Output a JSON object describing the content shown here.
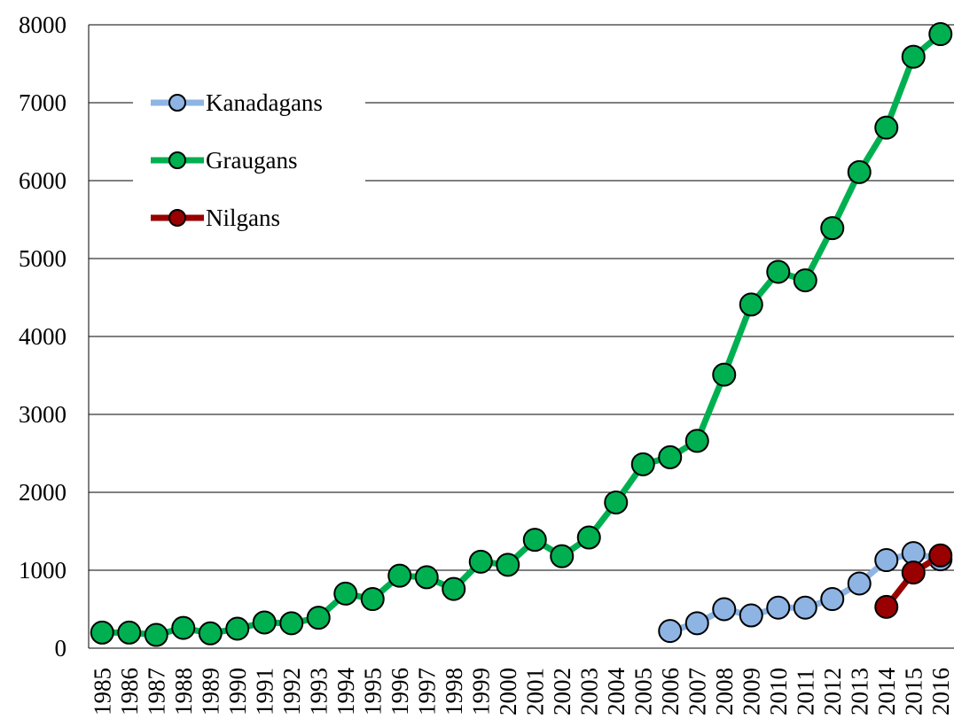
{
  "chart_data": {
    "type": "line",
    "categories": [
      "1985",
      "1986",
      "1987",
      "1988",
      "1989",
      "1990",
      "1991",
      "1992",
      "1993",
      "1994",
      "1995",
      "1996",
      "1997",
      "1998",
      "1999",
      "2000",
      "2001",
      "2002",
      "2003",
      "2004",
      "2005",
      "2006",
      "2007",
      "2008",
      "2009",
      "2010",
      "2011",
      "2012",
      "2013",
      "2014",
      "2015",
      "2016"
    ],
    "series": [
      {
        "name": "Kanadagans",
        "color": "#8eb4e3",
        "values": [
          null,
          null,
          null,
          null,
          null,
          null,
          null,
          null,
          null,
          null,
          null,
          null,
          null,
          null,
          null,
          null,
          null,
          null,
          null,
          null,
          null,
          220,
          320,
          500,
          420,
          520,
          520,
          630,
          830,
          1130,
          1220,
          1140
        ]
      },
      {
        "name": "Graugans",
        "color": "#00b050",
        "values": [
          200,
          200,
          170,
          260,
          190,
          250,
          330,
          320,
          390,
          700,
          630,
          930,
          910,
          760,
          1110,
          1070,
          1390,
          1180,
          1420,
          1870,
          2360,
          2450,
          2660,
          3510,
          4410,
          4830,
          4720,
          5390,
          6110,
          6680,
          7590,
          7880
        ]
      },
      {
        "name": "Nilgans",
        "color": "#990000",
        "values": [
          null,
          null,
          null,
          null,
          null,
          null,
          null,
          null,
          null,
          null,
          null,
          null,
          null,
          null,
          null,
          null,
          null,
          null,
          null,
          null,
          null,
          null,
          null,
          null,
          null,
          null,
          null,
          null,
          null,
          530,
          970,
          1190
        ]
      }
    ],
    "ylim": [
      0,
      8000
    ],
    "yticks": [
      0,
      1000,
      2000,
      3000,
      4000,
      5000,
      6000,
      7000,
      8000
    ],
    "grid": true,
    "legend": "upper left"
  }
}
